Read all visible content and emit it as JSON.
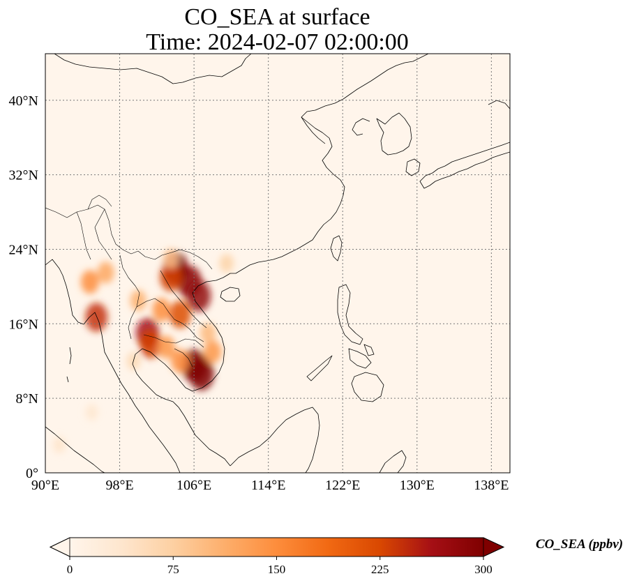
{
  "title": {
    "line1": "CO_SEA at surface",
    "line2": "Time: 2024-02-07 02:00:00"
  },
  "map": {
    "lon_range": [
      90,
      140
    ],
    "lat_range": [
      0,
      45
    ],
    "gridlines": true,
    "gridline_style": "dotted",
    "lon_ticks": [
      {
        "value": 90,
        "label": "90°E"
      },
      {
        "value": 98,
        "label": "98°E"
      },
      {
        "value": 106,
        "label": "106°E"
      },
      {
        "value": 114,
        "label": "114°E"
      },
      {
        "value": 122,
        "label": "122°E"
      },
      {
        "value": 130,
        "label": "130°E"
      },
      {
        "value": 138,
        "label": "138°E"
      }
    ],
    "lat_ticks": [
      {
        "value": 0,
        "label": "0°"
      },
      {
        "value": 8,
        "label": "8°N"
      },
      {
        "value": 16,
        "label": "16°N"
      },
      {
        "value": 24,
        "label": "24°N"
      },
      {
        "value": 32,
        "label": "32°N"
      },
      {
        "value": 40,
        "label": "40°N"
      }
    ],
    "background_color": "#fff5eb",
    "coastline_color": "#000000",
    "hotspots": [
      {
        "lon": 104.0,
        "lat": 22.0,
        "value": 300
      },
      {
        "lon": 105.5,
        "lat": 20.5,
        "value": 290
      },
      {
        "lon": 106.5,
        "lat": 19.0,
        "value": 280
      },
      {
        "lon": 103.5,
        "lat": 21.0,
        "value": 230
      },
      {
        "lon": 104.5,
        "lat": 17.0,
        "value": 220
      },
      {
        "lon": 101.0,
        "lat": 15.0,
        "value": 260
      },
      {
        "lon": 101.3,
        "lat": 13.8,
        "value": 230
      },
      {
        "lon": 106.0,
        "lat": 11.5,
        "value": 300
      },
      {
        "lon": 106.8,
        "lat": 10.6,
        "value": 300
      },
      {
        "lon": 95.5,
        "lat": 16.7,
        "value": 240
      },
      {
        "lon": 94.8,
        "lat": 20.5,
        "value": 150
      },
      {
        "lon": 96.5,
        "lat": 21.5,
        "value": 120
      },
      {
        "lon": 102.5,
        "lat": 17.5,
        "value": 150
      },
      {
        "lon": 100.0,
        "lat": 18.5,
        "value": 110
      },
      {
        "lon": 103.0,
        "lat": 13.5,
        "value": 140
      },
      {
        "lon": 104.5,
        "lat": 12.0,
        "value": 150
      },
      {
        "lon": 108.0,
        "lat": 13.0,
        "value": 140
      },
      {
        "lon": 107.5,
        "lat": 15.0,
        "value": 100
      },
      {
        "lon": 103.5,
        "lat": 23.0,
        "value": 90
      },
      {
        "lon": 109.5,
        "lat": 22.5,
        "value": 70
      },
      {
        "lon": 99.5,
        "lat": 12.0,
        "value": 60
      },
      {
        "lon": 91.5,
        "lat": 3.0,
        "value": 40
      },
      {
        "lon": 95.0,
        "lat": 6.5,
        "value": 35
      }
    ]
  },
  "colorbar": {
    "label": "CO_SEA (ppbv)",
    "min": 0,
    "max": 300,
    "extend": "both",
    "ticks": [
      {
        "value": 0,
        "label": "0"
      },
      {
        "value": 75,
        "label": "75"
      },
      {
        "value": 150,
        "label": "150"
      },
      {
        "value": 225,
        "label": "225"
      },
      {
        "value": 300,
        "label": "300"
      }
    ],
    "colors": [
      "#fff5eb",
      "#fee6ce",
      "#fdd0a2",
      "#fdae6b",
      "#fd8d3c",
      "#f16913",
      "#d94801",
      "#a50f15",
      "#7f0000"
    ]
  }
}
